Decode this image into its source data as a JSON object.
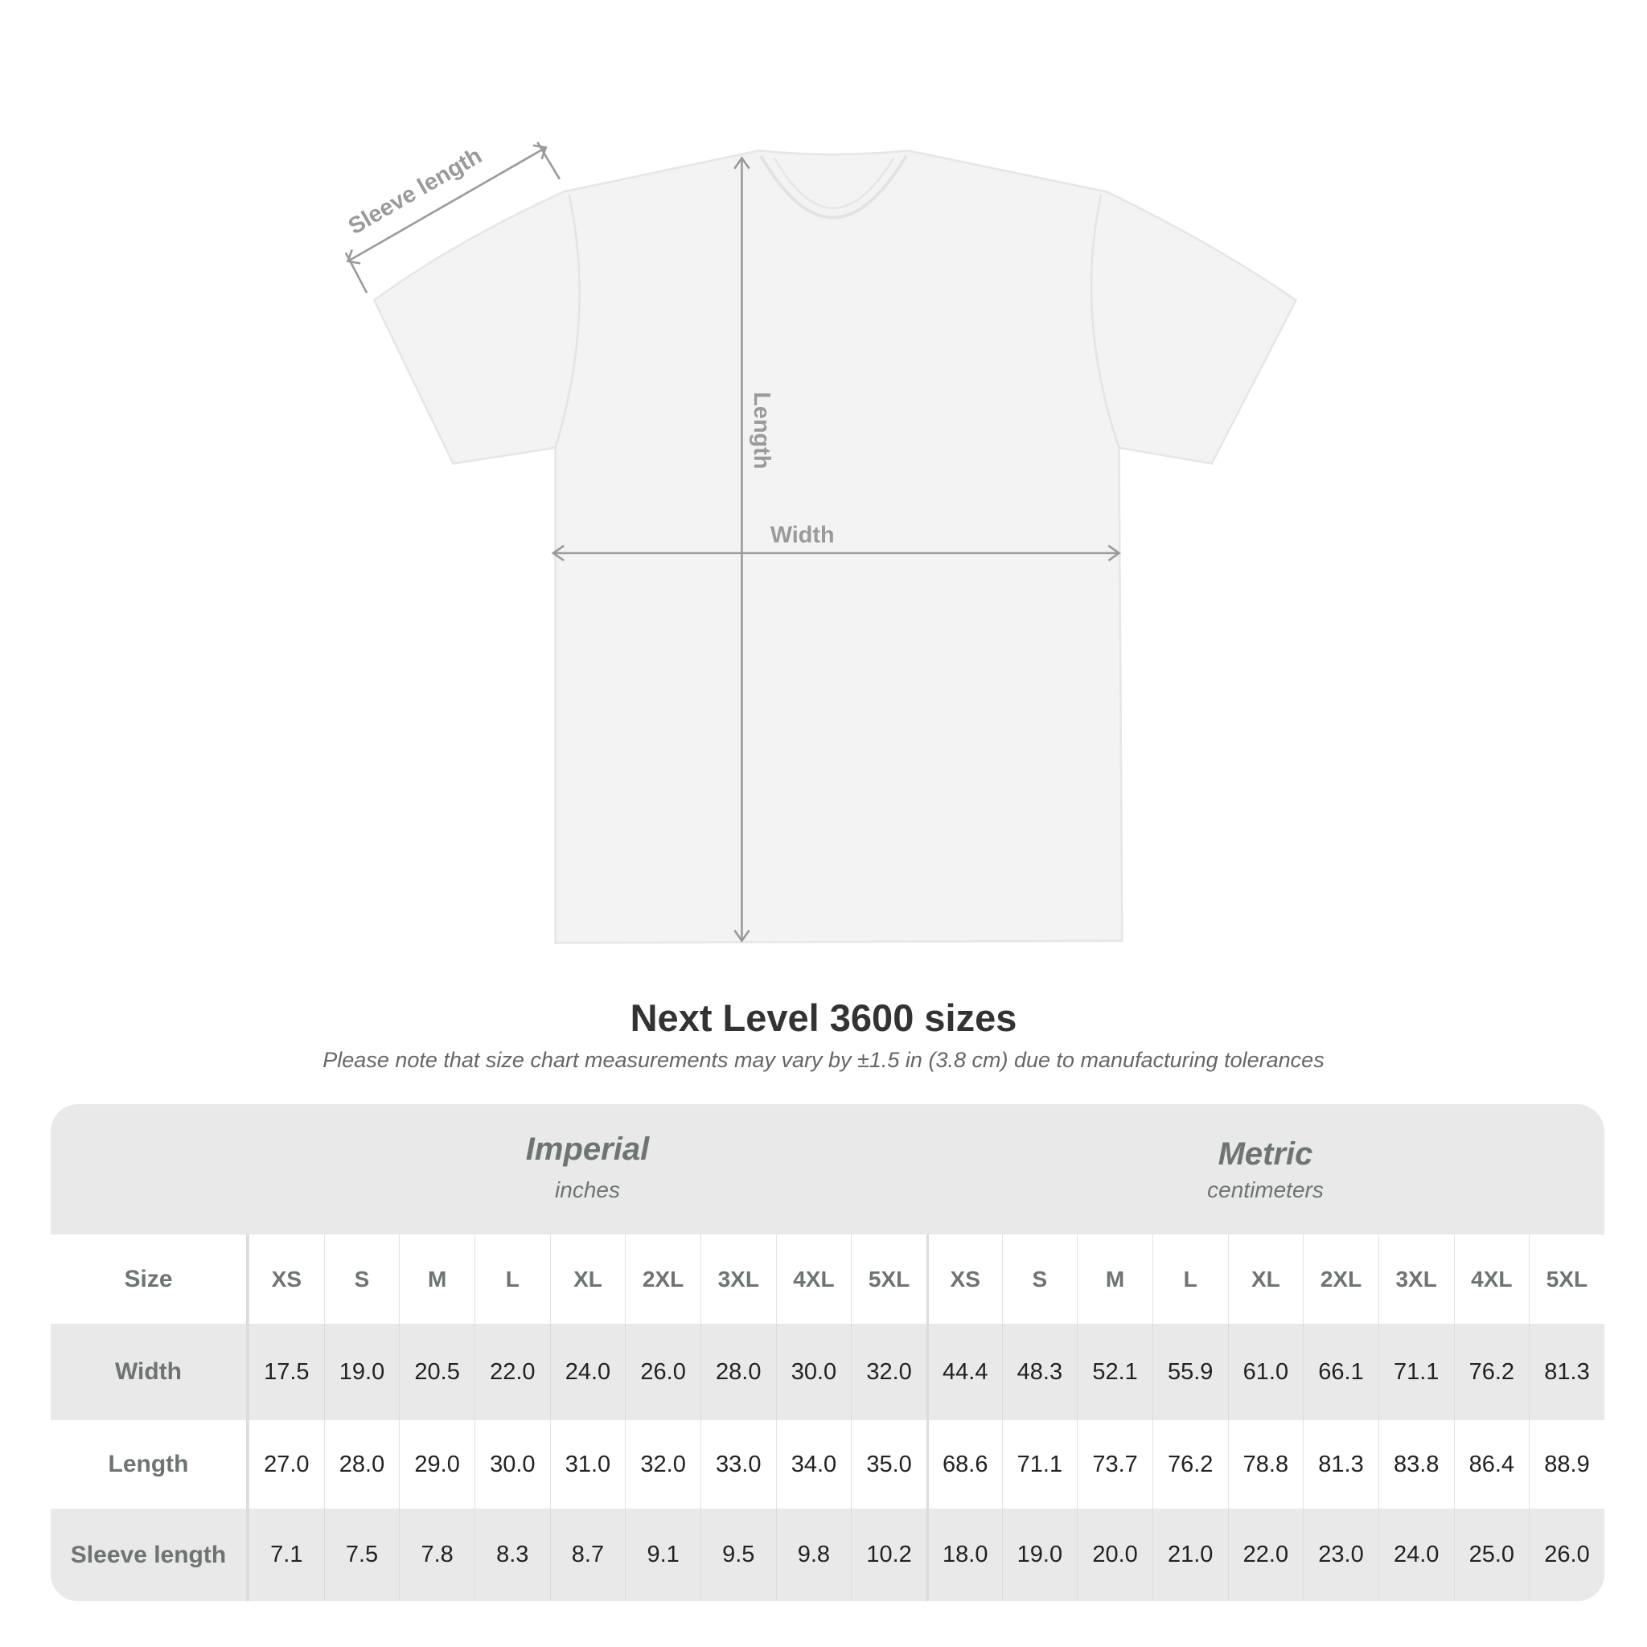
{
  "diagram": {
    "labels": {
      "sleeve": "Sleeve length",
      "length": "Length",
      "width": "Width"
    },
    "colors": {
      "shirt": "#f4f4f4",
      "measure": "#9a9a9a"
    }
  },
  "title": "Next Level 3600 sizes",
  "subtitle": "Please note that size chart measurements may vary by ±1.5 in (3.8 cm) due to manufacturing tolerances",
  "table": {
    "imperial": {
      "system": "Imperial",
      "unit": "inches"
    },
    "metric": {
      "system": "Metric",
      "unit": "centimeters"
    },
    "size_label": "Size",
    "sizes": [
      "XS",
      "S",
      "M",
      "L",
      "XL",
      "2XL",
      "3XL",
      "4XL",
      "5XL"
    ],
    "rows": [
      {
        "label": "Width",
        "imperial": [
          "17.5",
          "19.0",
          "20.5",
          "22.0",
          "24.0",
          "26.0",
          "28.0",
          "30.0",
          "32.0"
        ],
        "metric": [
          "44.4",
          "48.3",
          "52.1",
          "55.9",
          "61.0",
          "66.1",
          "71.1",
          "76.2",
          "81.3"
        ]
      },
      {
        "label": "Length",
        "imperial": [
          "27.0",
          "28.0",
          "29.0",
          "30.0",
          "31.0",
          "32.0",
          "33.0",
          "34.0",
          "35.0"
        ],
        "metric": [
          "68.6",
          "71.1",
          "73.7",
          "76.2",
          "78.8",
          "81.3",
          "83.8",
          "86.4",
          "88.9"
        ]
      },
      {
        "label": "Sleeve length",
        "imperial": [
          "7.1",
          "7.5",
          "7.8",
          "8.3",
          "8.7",
          "9.1",
          "9.5",
          "9.8",
          "10.2"
        ],
        "metric": [
          "18.0",
          "19.0",
          "20.0",
          "21.0",
          "22.0",
          "23.0",
          "24.0",
          "25.0",
          "26.0"
        ]
      }
    ],
    "colors": {
      "header_bg": "#e9e9e9",
      "label_text": "#6e7373",
      "value_text": "#222222"
    }
  }
}
